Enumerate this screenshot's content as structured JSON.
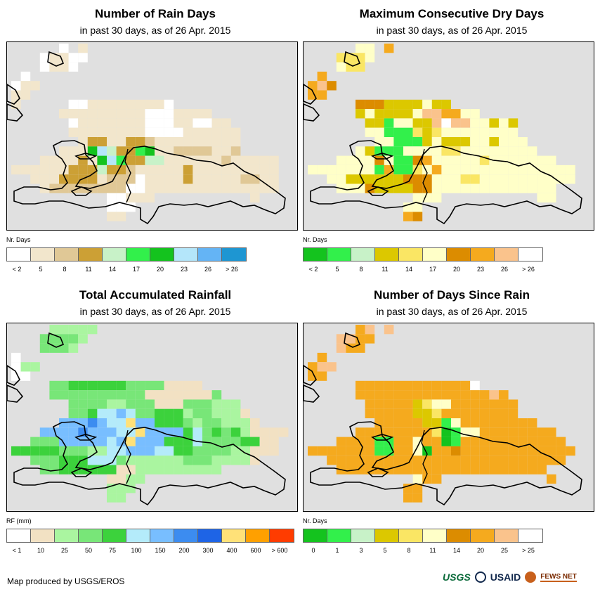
{
  "panels": [
    {
      "title": "Number of Rain Days",
      "subtitle": "in past 30 days, as of 26 Apr. 2015",
      "legend_title": "Nr. Days",
      "legend_colors": [
        "#ffffff",
        "#f2e6cc",
        "#e0c896",
        "#cca035",
        "#c8f2c8",
        "#32f04b",
        "#14c31e",
        "#b4e6fa",
        "#64b4f5",
        "#1e96d2"
      ],
      "legend_labels": [
        "< 2",
        "5",
        "8",
        "11",
        "14",
        "17",
        "20",
        "23",
        "26",
        "> 26"
      ],
      "grid": [
        ".....0.1......................",
        "...01100......................",
        "...0110.......................",
        ".0.............................",
        "011............................",
        "11.............................",
        "1.....00111111110..............",
        ".....1111111110001111...........",
        "......01111111000110011........",
        "......111111110000111111.......",
        ".......13311332111111111.......",
        ".....1116743356112222112.....",
        "...1111316753344111111211111.",
        "1111113334332111113111111111.",
        "..11133331222011113111112211..",
        "...1222222220011111111111111..",
        "..........00111..........1...",
        "..........000.................",
        "..........11.................."
      ]
    },
    {
      "title": "Maximum Consecutive Dry Days",
      "subtitle": "in past 30 days, as of 26 Apr. 2015",
      "legend_title": "Nr. Days",
      "legend_colors": [
        "#14c31e",
        "#32f04b",
        "#c8f2c8",
        "#dcc800",
        "#fae664",
        "#ffffc8",
        "#dc8c00",
        "#f5aa1e",
        "#fac38c",
        "#ffffff"
      ],
      "legend_labels": [
        "< 2",
        "5",
        "8",
        "11",
        "14",
        "17",
        "20",
        "23",
        "26",
        "> 26"
      ],
      "grid": [
        ".....55.7.....................",
        "...4445.......................",
        "...544........................",
        ".7.............................",
        "786............................",
        "77.............................",
        ".....6663333533...............",
        ".....3533335887755...........",
        "......3315533898855353........",
        "......5511143455555555.........",
        ".......5511135333553555........",
        ".....5311155554455555555......",
        "...55556511675555545555555....",
        "5555555171145755555555555555.",
        "..55333333666555445555555555..",
        "...55563333665555555555555....",
        "...........555..........55....",
        "..........55..................",
        "..........76.................."
      ]
    },
    {
      "title": "Total Accumulated Rainfall",
      "subtitle": "in past 30 days, as of 26 Apr. 2015",
      "legend_title": "RF (mm)",
      "legend_colors": [
        "#ffffff",
        "#f2e1c3",
        "#aaf5a0",
        "#78e678",
        "#3cd23c",
        "#b4ebfa",
        "#78beff",
        "#3c8cf0",
        "#1e64e6",
        "#ffe178",
        "#ffa000",
        "#ff3c00"
      ],
      "legend_labels": [
        "< 1",
        "10",
        "25",
        "50",
        "75",
        "100",
        "150",
        "200",
        "300",
        "400",
        "600",
        "> 600"
      ],
      "grid": [
        "....22222.....................",
        "...33332......................",
        "...3332.......................",
        "0..............................",
        "022............................",
        "00.............................",
        "....3344444433331111..........",
        "....333333333311111113.........",
        "......333322333111333222.......",
        "......3345565334442332221......",
        ".....666765596644432332221.....",
        "...66667666559666645343421111..",
        "..33366666569666444533334411...",
        "4444433322556665544333322111...",
        "..333444555322222233322221....",
        "...3344444411222222222........",
        "..........1122.................",
        "..........222.................",
        "..........22.................."
      ]
    },
    {
      "title": "Number of Days Since Rain",
      "subtitle": "in past 30 days, as of 26 Apr. 2015",
      "legend_title": "Nr. Days",
      "legend_colors": [
        "#14c31e",
        "#32f04b",
        "#c8f2c8",
        "#dcc800",
        "#fae664",
        "#ffffc8",
        "#dc8c00",
        "#f5aa1e",
        "#fac38c",
        "#ffffff"
      ],
      "legend_labels": [
        "0",
        "1",
        "3",
        "5",
        "8",
        "11",
        "14",
        "20",
        "25",
        "> 25"
      ],
      "grid": [
        ".....78.8.....................",
        "...8877.......................",
        "...877........................",
        ".7.............................",
        "788............................",
        "77.............................",
        ".....7777777777779.............",
        ".....7777777777777787.........",
        "......7777734557777777.........",
        "......7777733477777777.........",
        ".......77777331577777777.......",
        ".....777777774015577777777.....",
        "...777711775770177777777777....",
        "7777777117750776777777777777.",
        "..7777777777777777777777777...",
        "...7777777777777777777777.....",
        "...........577...........7....",
        "..........77..................",
        "..........77.................."
      ]
    }
  ],
  "footer_text": "Map produced by USGS/EROS",
  "logos": {
    "usgs": "USGS",
    "usaid": "USAID",
    "fews": "FEWS NET"
  }
}
